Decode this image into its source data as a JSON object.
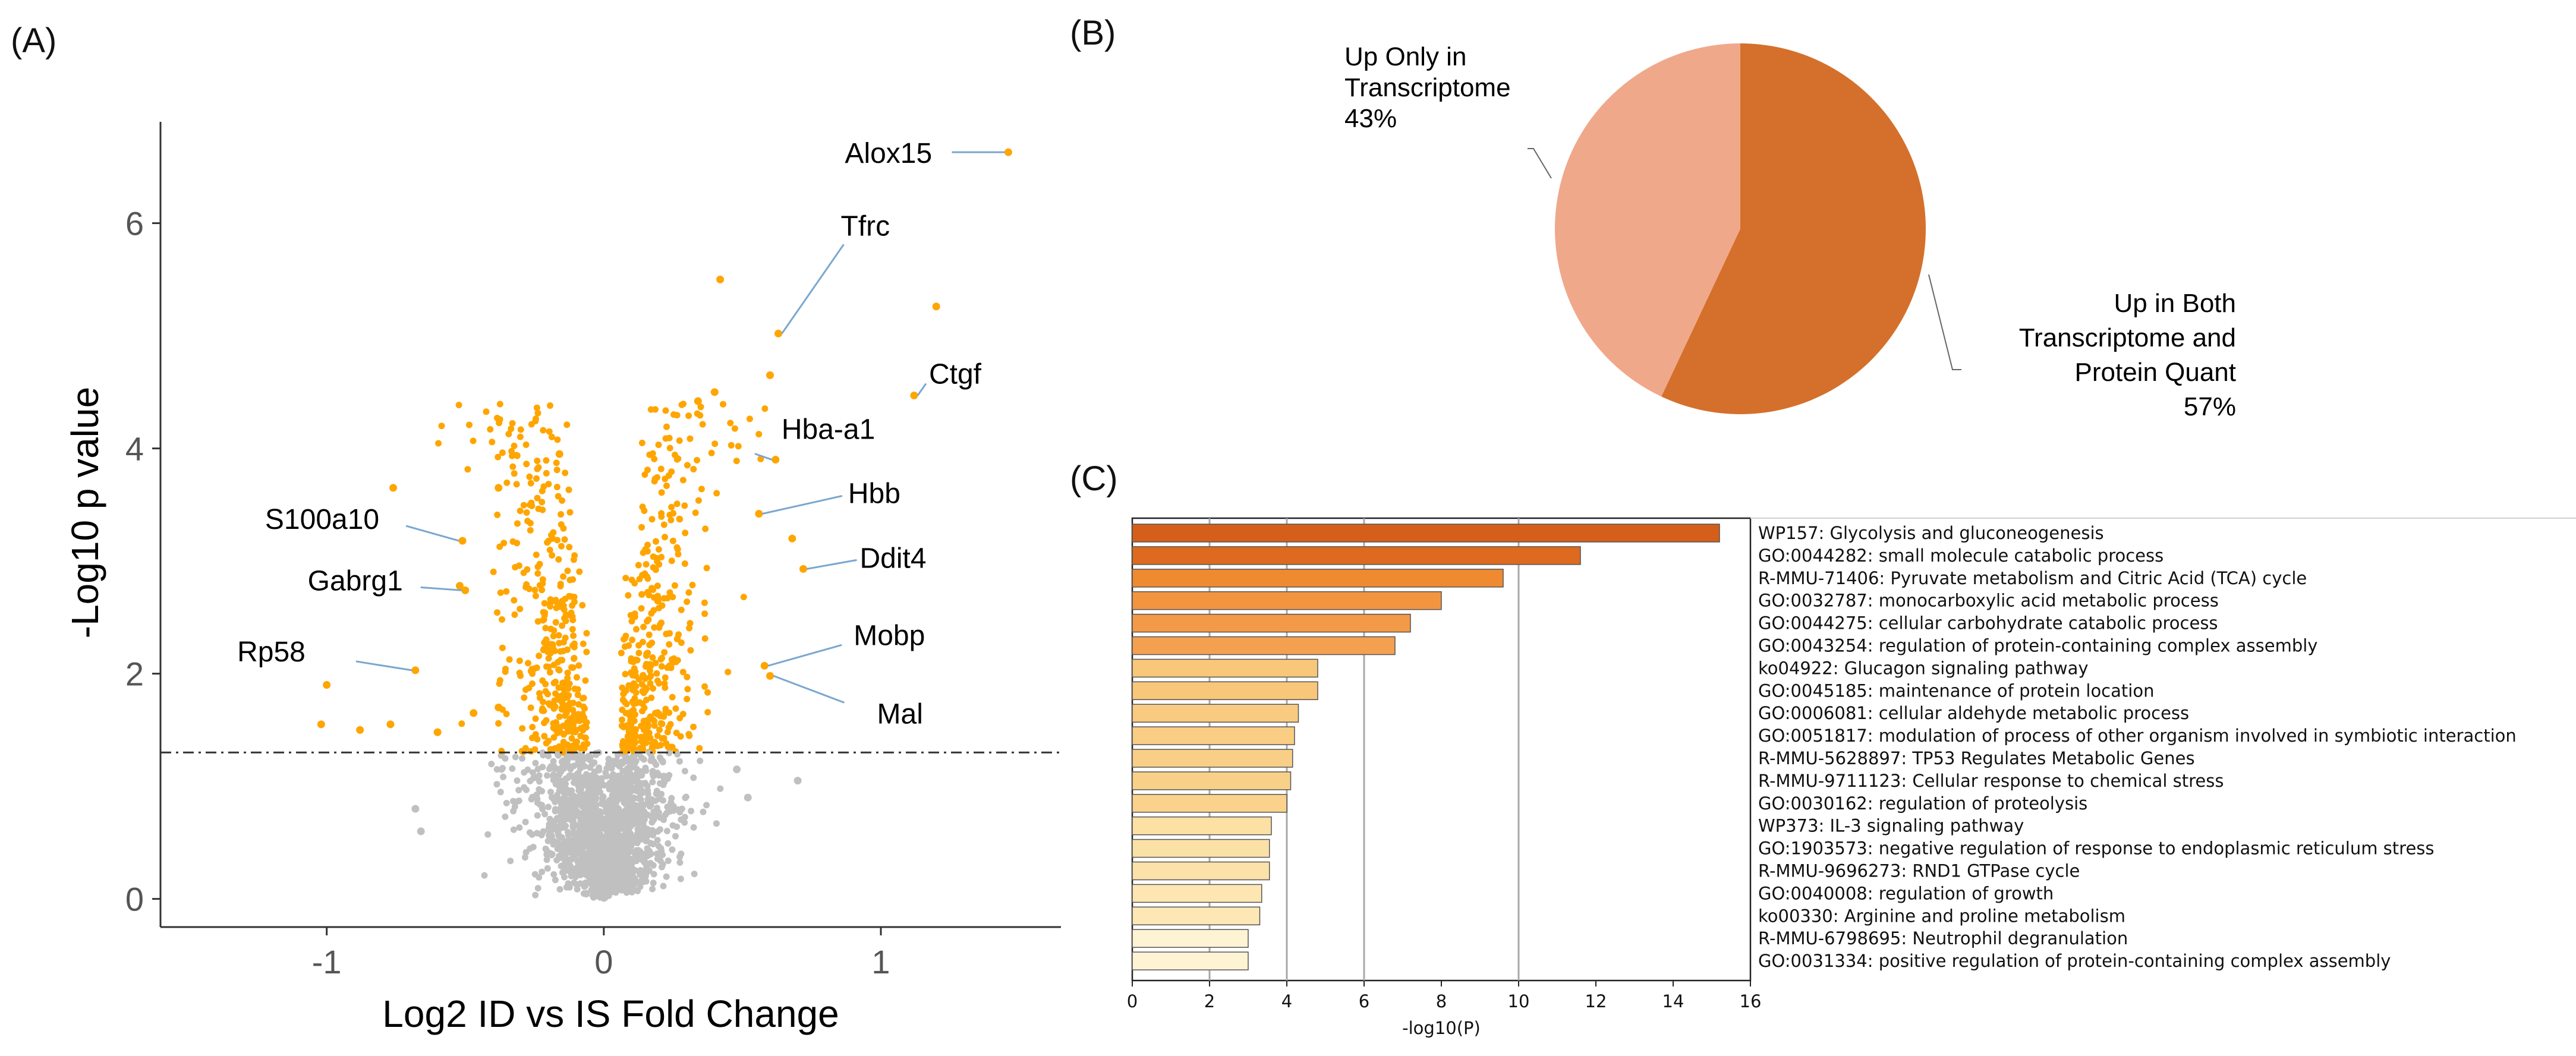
{
  "panels": {
    "a": "(A)",
    "b": "(B)",
    "c": "(C)"
  },
  "chart_data": [
    {
      "type": "scatter",
      "xlabel": "Log2 ID vs IS Fold Change",
      "ylabel": "-Log10 p value",
      "xlim": [
        -1.6,
        1.65
      ],
      "ylim": [
        -0.25,
        6.9
      ],
      "x_ticks": [
        -1,
        0,
        1
      ],
      "x_tick_labels": [
        "-1",
        "0",
        "1"
      ],
      "y_ticks": [
        0,
        2,
        4,
        6
      ],
      "y_tick_labels": [
        "0",
        "2",
        "4",
        "6"
      ],
      "threshold_y": 1.3,
      "grid": false,
      "colors": {
        "significant": "#FFA500",
        "nonsignificant": "#C0C0C0",
        "leader": "#7aa7cf"
      },
      "labeled_points": [
        {
          "gene": "Alox15",
          "x": 1.46,
          "y": 6.63
        },
        {
          "gene": "Tfrc",
          "x": 0.63,
          "y": 5.02
        },
        {
          "gene": "Ctgf",
          "x": 1.12,
          "y": 4.47
        },
        {
          "gene": "Hba-a1",
          "x": 0.62,
          "y": 3.9
        },
        {
          "gene": "Hbb",
          "x": 0.56,
          "y": 3.42
        },
        {
          "gene": "Ddit4",
          "x": 0.72,
          "y": 2.93
        },
        {
          "gene": "Mobp",
          "x": 0.58,
          "y": 2.07
        },
        {
          "gene": "Mal",
          "x": 0.6,
          "y": 1.98
        },
        {
          "gene": "S100a10",
          "x": -0.51,
          "y": 3.18
        },
        {
          "gene": "Gabrg1",
          "x": -0.5,
          "y": 2.74
        },
        {
          "gene": "Rp58",
          "x": -0.68,
          "y": 2.03
        }
      ],
      "extra_points": [
        {
          "x": 0.42,
          "y": 5.5
        },
        {
          "x": 1.2,
          "y": 5.26
        },
        {
          "x": 0.6,
          "y": 4.65
        },
        {
          "x": 0.4,
          "y": 4.5
        },
        {
          "x": 0.34,
          "y": 4.42
        },
        {
          "x": -0.16,
          "y": 3.95
        },
        {
          "x": 0.68,
          "y": 3.2
        },
        {
          "x": -0.76,
          "y": 3.65
        },
        {
          "x": -0.38,
          "y": 3.65
        },
        {
          "x": -1.0,
          "y": 1.9
        },
        {
          "x": -1.02,
          "y": 1.55
        },
        {
          "x": -0.88,
          "y": 1.5
        },
        {
          "x": -0.77,
          "y": 1.55
        },
        {
          "x": -0.6,
          "y": 1.48
        },
        {
          "x": -0.52,
          "y": 2.78
        },
        {
          "x": -0.47,
          "y": 1.65
        },
        {
          "x": -0.38,
          "y": 1.7
        },
        {
          "x": 0.7,
          "y": 1.05
        },
        {
          "x": -0.68,
          "y": 0.8
        },
        {
          "x": -0.66,
          "y": 0.6
        },
        {
          "x": 0.48,
          "y": 1.15
        },
        {
          "x": 0.52,
          "y": 0.9
        }
      ]
    },
    {
      "type": "pie",
      "slices": [
        {
          "label_lines": [
            "Up in Both",
            "Transcriptome and",
            "Protein Quant",
            "57%"
          ],
          "value": 57,
          "color": "#D4702B"
        },
        {
          "label_lines": [
            "Up Only in",
            "Transcriptome",
            "43%"
          ],
          "value": 43,
          "color": "#F0A88A"
        }
      ]
    },
    {
      "type": "bar",
      "orientation": "horizontal",
      "xlabel": "-log10(P)",
      "xlim": [
        0,
        16
      ],
      "x_ticks": [
        0,
        2,
        4,
        6,
        8,
        10,
        12,
        14,
        16
      ],
      "x_tick_labels": [
        "0",
        "2",
        "4",
        "6",
        "8",
        "10",
        "12",
        "14",
        "16"
      ],
      "gridlines": [
        2,
        4,
        6,
        10
      ],
      "categories": [
        "WP157: Glycolysis and gluconeogenesis",
        "GO:0044282: small molecule catabolic process",
        "R-MMU-71406: Pyruvate metabolism and Citric Acid (TCA) cycle",
        "GO:0032787: monocarboxylic acid metabolic process",
        "GO:0044275: cellular carbohydrate catabolic process",
        "GO:0043254: regulation of protein-containing complex assembly",
        "ko04922: Glucagon signaling pathway",
        "GO:0045185: maintenance of protein location",
        "GO:0006081: cellular aldehyde metabolic process",
        "GO:0051817: modulation of process of other organism involved in symbiotic interaction",
        "R-MMU-5628897: TP53 Regulates Metabolic Genes",
        "R-MMU-9711123: Cellular response to chemical stress",
        "GO:0030162: regulation of proteolysis",
        "WP373: IL-3 signaling pathway",
        "GO:1903573: negative regulation of response to endoplasmic reticulum stress",
        "R-MMU-9696273: RND1 GTPase cycle",
        "GO:0040008: regulation of growth",
        "ko00330: Arginine and proline metabolism",
        "R-MMU-6798695: Neutrophil degranulation",
        "GO:0031334: positive regulation of protein-containing complex assembly"
      ],
      "values": [
        15.2,
        11.6,
        9.6,
        8.0,
        7.2,
        6.8,
        4.8,
        4.8,
        4.3,
        4.2,
        4.15,
        4.1,
        4.0,
        3.6,
        3.55,
        3.55,
        3.35,
        3.3,
        3.0,
        3.0
      ],
      "colors": [
        "#D55E1A",
        "#DD6A1F",
        "#F08A30",
        "#F39540",
        "#F39A48",
        "#F3A050",
        "#F8C77A",
        "#F8C77A",
        "#F9CB80",
        "#F9CD84",
        "#F9CE86",
        "#F9D088",
        "#FAD28C",
        "#FCE0A4",
        "#FCE1A6",
        "#FCE2A8",
        "#FDE6B2",
        "#FDE7B4",
        "#FEF3D2",
        "#FEF4D4"
      ]
    }
  ]
}
